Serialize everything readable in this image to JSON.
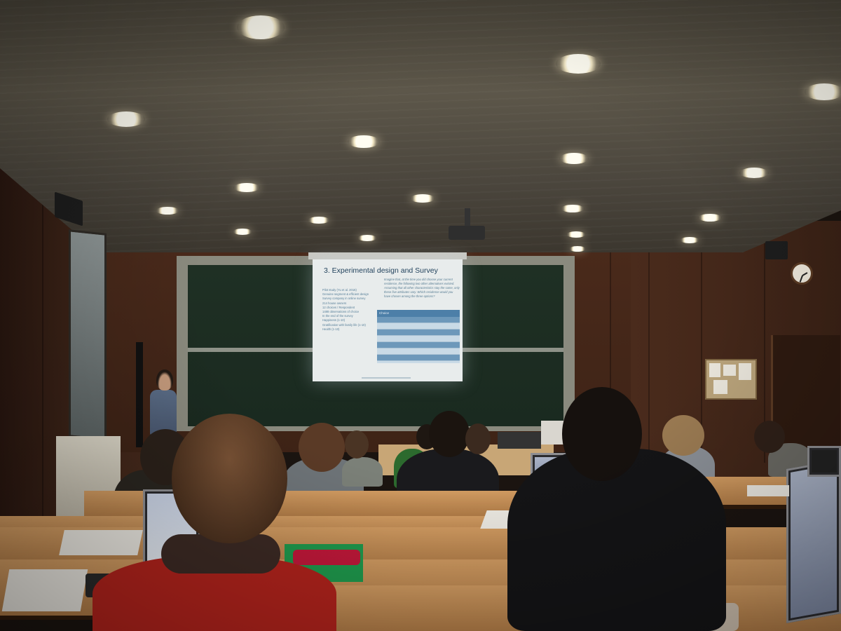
{
  "scene": {
    "kind": "lecture hall photograph",
    "colors": {
      "ceiling": "#5d574a",
      "wood_wall": "#4a2a1b",
      "chalkboard": "#1f3024",
      "screen": "#e8ecec",
      "desk": "#d29c62",
      "slide_title": "#1e3f5a",
      "slide_table_header": "#4d7fa8"
    }
  },
  "slide": {
    "title": "3. Experimental design and Survey",
    "bullets": [
      "Pilot study (Yu et al. 2016)",
      "Genuine segment & efficient design",
      "Survey company in online survey",
      "214 house owners",
      "12 choices / Respondent",
      "1488 observations of choice",
      "In the end of the survey",
      "Happiness (1-10)",
      "Gratification with family life (1-10)",
      "Health (1-10)"
    ],
    "question": "Imagine that, at the time you did choose your current residence, the following two other alternatives existed. Assuming that all other characteristics stay the same, only these five attributes vary. Which residence would you have chosen among the three options?",
    "table_header": "Choice"
  }
}
